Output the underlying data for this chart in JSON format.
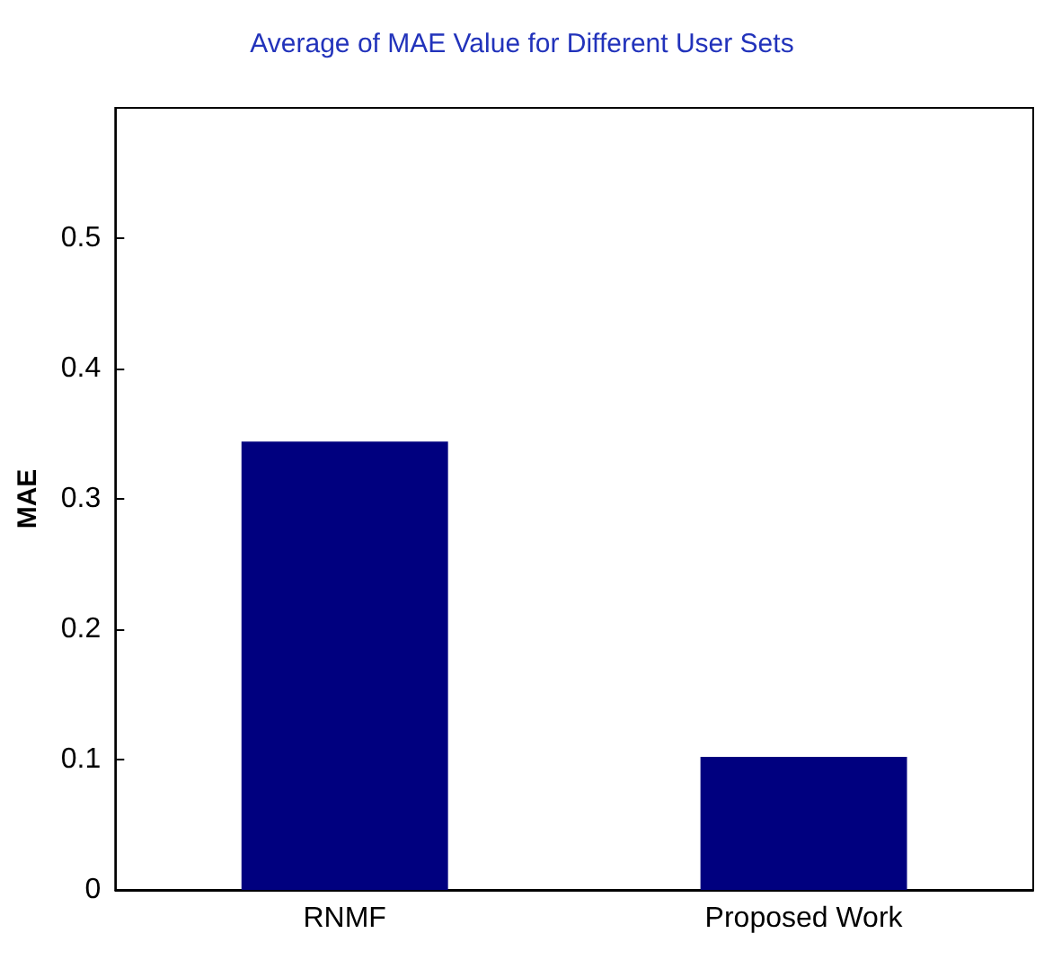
{
  "chart_data": {
    "type": "bar",
    "title": "Average of MAE Value for Different User Sets",
    "ylabel": "MAE",
    "categories": [
      "RNMF",
      "Proposed Work"
    ],
    "values": [
      0.344,
      0.102
    ],
    "color": "#00007f",
    "ylim": [
      0,
      0.6
    ],
    "yticks": [
      0,
      0.1,
      0.2,
      0.3,
      0.4,
      0.5
    ],
    "grid": false
  }
}
